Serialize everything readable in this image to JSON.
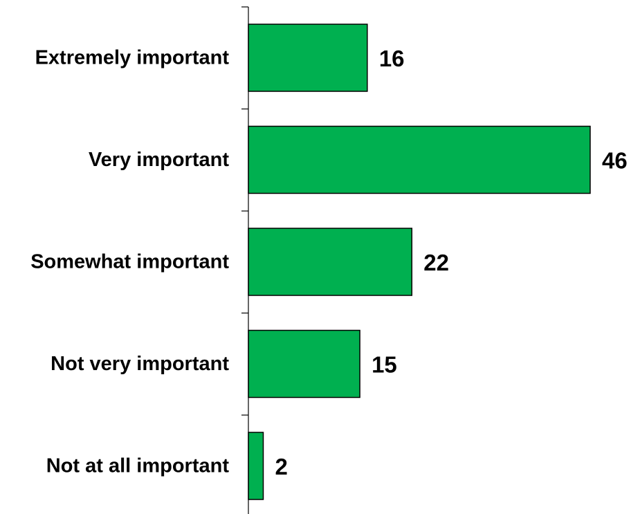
{
  "chart_data": {
    "type": "bar",
    "orientation": "horizontal",
    "categories": [
      "Extremely important",
      "Very important",
      "Somewhat important",
      "Not very important",
      "Not at all important"
    ],
    "values": [
      16,
      46,
      22,
      15,
      2
    ],
    "data_labels": [
      "16",
      "46",
      "22",
      "15",
      "2"
    ],
    "title": "",
    "xlabel": "",
    "ylabel": "",
    "xlim": [
      0,
      46
    ],
    "grid": false,
    "legend": "none",
    "bar_color": "#00b050",
    "bar_edge_color": "#000000"
  }
}
